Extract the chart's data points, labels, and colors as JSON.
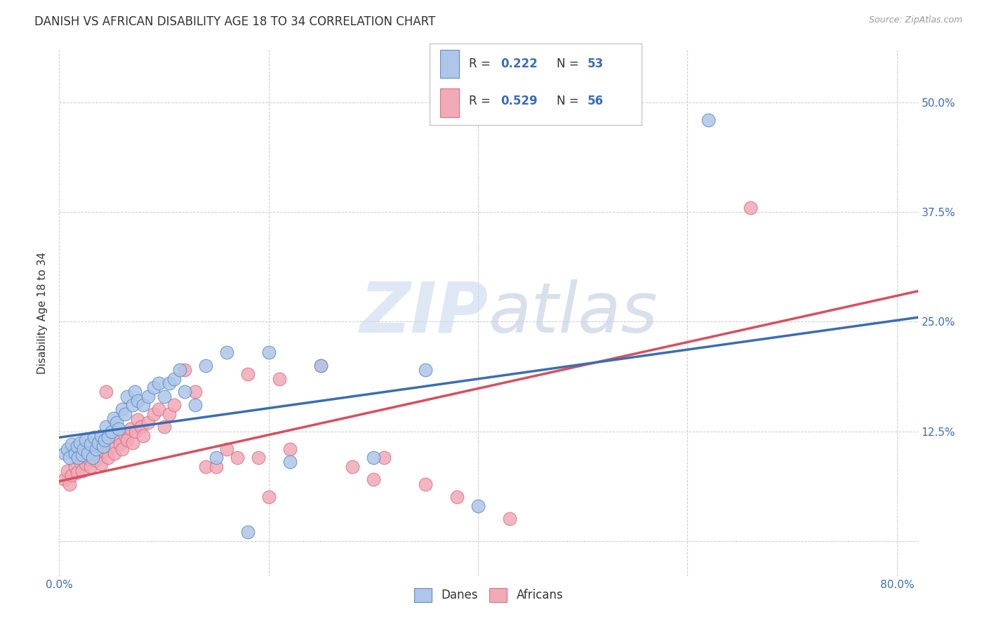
{
  "title": "DANISH VS AFRICAN DISABILITY AGE 18 TO 34 CORRELATION CHART",
  "source": "Source: ZipAtlas.com",
  "ylabel": "Disability Age 18 to 34",
  "xlim": [
    0.0,
    0.82
  ],
  "ylim": [
    -0.04,
    0.56
  ],
  "xtick_positions": [
    0.0,
    0.2,
    0.4,
    0.6,
    0.8
  ],
  "xtick_labels": [
    "0.0%",
    "",
    "",
    "",
    "80.0%"
  ],
  "ytick_positions": [
    0.0,
    0.125,
    0.25,
    0.375,
    0.5
  ],
  "ytick_labels": [
    "",
    "12.5%",
    "25.0%",
    "37.5%",
    "50.0%"
  ],
  "legend_r_danes": "0.222",
  "legend_n_danes": "53",
  "legend_r_africans": "0.529",
  "legend_n_africans": "56",
  "danes_color": "#aec6e8",
  "africans_color": "#f0aab8",
  "danes_edge_color": "#5b8fc9",
  "africans_edge_color": "#e07080",
  "danes_line_color": "#3a6db5",
  "africans_line_color": "#d94f5c",
  "danes_scatter_x": [
    0.005,
    0.008,
    0.01,
    0.012,
    0.015,
    0.017,
    0.018,
    0.02,
    0.022,
    0.023,
    0.025,
    0.027,
    0.03,
    0.032,
    0.033,
    0.035,
    0.037,
    0.04,
    0.042,
    0.043,
    0.045,
    0.047,
    0.05,
    0.052,
    0.055,
    0.057,
    0.06,
    0.063,
    0.065,
    0.07,
    0.072,
    0.075,
    0.08,
    0.085,
    0.09,
    0.095,
    0.1,
    0.105,
    0.11,
    0.115,
    0.12,
    0.13,
    0.14,
    0.15,
    0.16,
    0.18,
    0.2,
    0.22,
    0.25,
    0.3,
    0.35,
    0.4,
    0.62
  ],
  "danes_scatter_y": [
    0.1,
    0.105,
    0.095,
    0.11,
    0.1,
    0.108,
    0.095,
    0.112,
    0.098,
    0.105,
    0.115,
    0.1,
    0.11,
    0.095,
    0.118,
    0.105,
    0.112,
    0.12,
    0.108,
    0.115,
    0.13,
    0.118,
    0.125,
    0.14,
    0.135,
    0.128,
    0.15,
    0.145,
    0.165,
    0.155,
    0.17,
    0.16,
    0.155,
    0.165,
    0.175,
    0.18,
    0.165,
    0.18,
    0.185,
    0.195,
    0.17,
    0.155,
    0.2,
    0.095,
    0.215,
    0.01,
    0.215,
    0.09,
    0.2,
    0.095,
    0.195,
    0.04,
    0.48
  ],
  "africans_scatter_x": [
    0.005,
    0.008,
    0.01,
    0.012,
    0.015,
    0.017,
    0.02,
    0.022,
    0.025,
    0.027,
    0.03,
    0.032,
    0.035,
    0.037,
    0.04,
    0.043,
    0.045,
    0.047,
    0.05,
    0.053,
    0.055,
    0.058,
    0.06,
    0.063,
    0.065,
    0.068,
    0.07,
    0.073,
    0.075,
    0.078,
    0.08,
    0.085,
    0.09,
    0.095,
    0.1,
    0.105,
    0.11,
    0.12,
    0.13,
    0.14,
    0.15,
    0.16,
    0.17,
    0.18,
    0.19,
    0.2,
    0.21,
    0.22,
    0.25,
    0.28,
    0.3,
    0.31,
    0.35,
    0.38,
    0.43,
    0.66
  ],
  "africans_scatter_y": [
    0.07,
    0.08,
    0.065,
    0.075,
    0.085,
    0.078,
    0.09,
    0.08,
    0.088,
    0.095,
    0.085,
    0.1,
    0.092,
    0.098,
    0.088,
    0.102,
    0.17,
    0.095,
    0.108,
    0.1,
    0.118,
    0.11,
    0.105,
    0.12,
    0.115,
    0.128,
    0.112,
    0.125,
    0.138,
    0.13,
    0.12,
    0.135,
    0.145,
    0.15,
    0.13,
    0.145,
    0.155,
    0.195,
    0.17,
    0.085,
    0.085,
    0.105,
    0.095,
    0.19,
    0.095,
    0.05,
    0.185,
    0.105,
    0.2,
    0.085,
    0.07,
    0.095,
    0.065,
    0.05,
    0.025,
    0.38
  ],
  "danes_trend_x": [
    0.0,
    0.82
  ],
  "danes_trend_y": [
    0.118,
    0.255
  ],
  "africans_trend_x": [
    0.0,
    0.82
  ],
  "africans_trend_y": [
    0.068,
    0.285
  ],
  "watermark_zip": "ZIP",
  "watermark_atlas": "atlas",
  "background_color": "#ffffff",
  "grid_color": "#cccccc",
  "title_fontsize": 12,
  "source_fontsize": 9,
  "axis_label_fontsize": 11,
  "tick_fontsize": 11,
  "legend_fontsize": 13,
  "tick_color": "#3a6db5",
  "text_color": "#333333"
}
